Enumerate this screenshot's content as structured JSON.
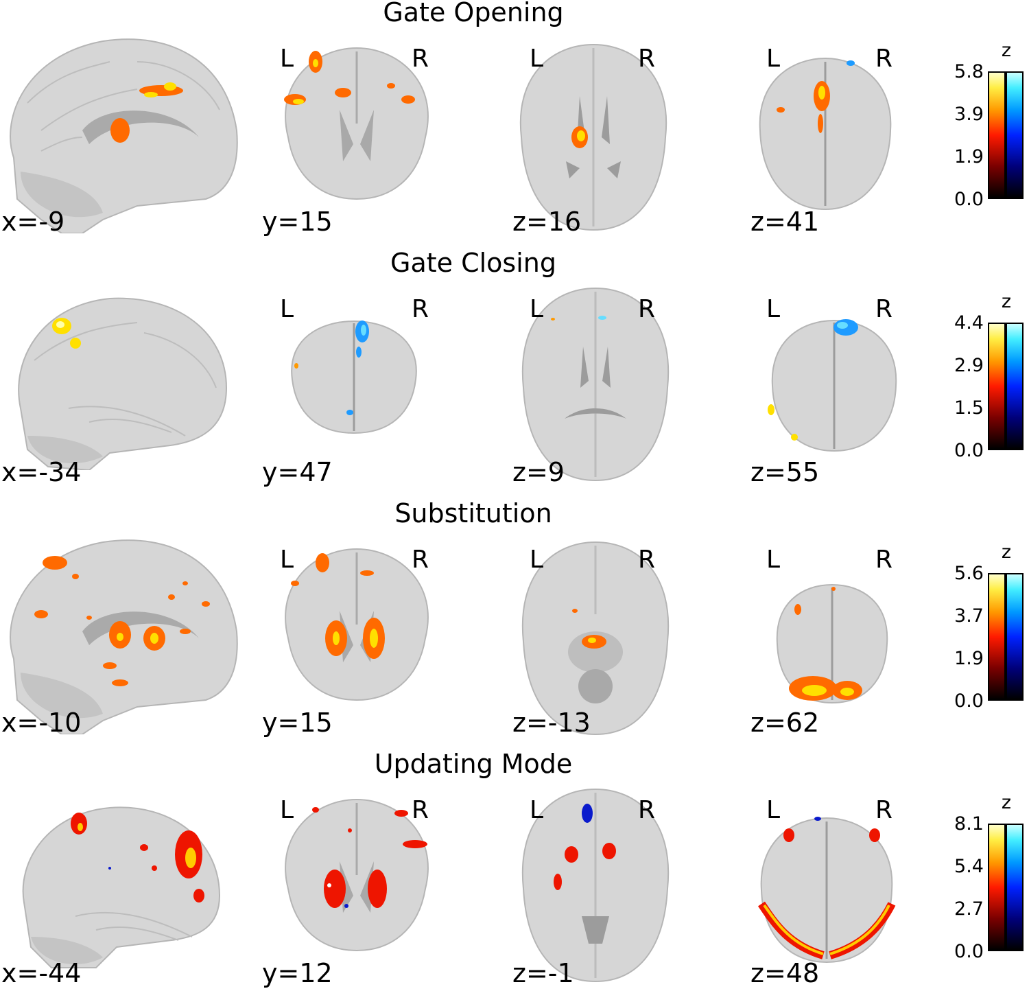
{
  "rows": [
    {
      "title": "Gate Opening",
      "coords": [
        "x=-9",
        "y=15",
        "z=16",
        "z=41"
      ],
      "colorbar": {
        "label": "z",
        "ticks": [
          "5.8",
          "3.9",
          "1.9",
          "0.0"
        ]
      }
    },
    {
      "title": "Gate Closing",
      "coords": [
        "x=-34",
        "y=47",
        "z=9",
        "z=55"
      ],
      "colorbar": {
        "label": "z",
        "ticks": [
          "4.4",
          "2.9",
          "1.5",
          "0.0"
        ]
      }
    },
    {
      "title": "Substitution",
      "coords": [
        "x=-10",
        "y=15",
        "z=-13",
        "z=62"
      ],
      "colorbar": {
        "label": "z",
        "ticks": [
          "5.6",
          "3.7",
          "1.9",
          "0.0"
        ]
      }
    },
    {
      "title": "Updating Mode",
      "coords": [
        "x=-44",
        "y=12",
        "z=-1",
        "z=48"
      ],
      "colorbar": {
        "label": "z",
        "ticks": [
          "8.1",
          "5.4",
          "2.7",
          "0.0"
        ]
      }
    }
  ],
  "orientation": {
    "left": "L",
    "right": "R"
  },
  "colors": {
    "warm": "#ff5a00",
    "hot": "#ffe000",
    "cool": "#1e9bff",
    "deep_cool": "#0a1acc",
    "brain": "#d4d4d4"
  }
}
